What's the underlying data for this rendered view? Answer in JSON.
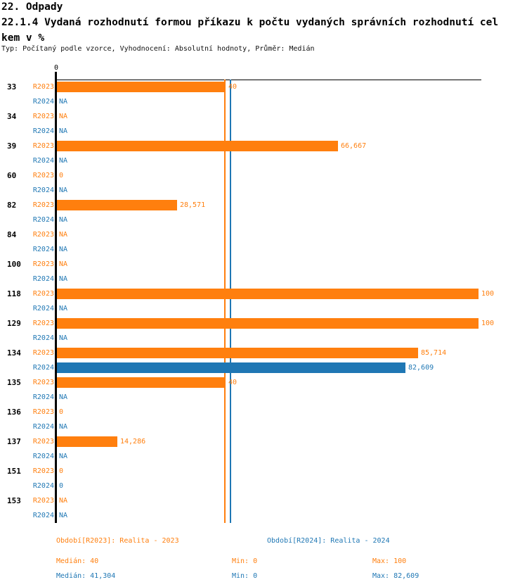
{
  "header": {
    "line1": "22. Odpady",
    "line2": "22.1.4 Vydaná rozhodnutí formou příkazu k počtu vydaných správních rozhodnutí cel",
    "line3": "kem v %",
    "subtitle": "Typ: Počítaný podle vzorce, Vyhodnocení: Absolutní hodnoty, Průměr: Medián"
  },
  "axis": {
    "tick_zero": "0"
  },
  "colors": {
    "r2023": "#ff7f0e",
    "r2024": "#1f77b4",
    "axis": "#000000"
  },
  "chart_data": {
    "type": "bar",
    "orientation": "horizontal",
    "xlim": [
      0,
      100
    ],
    "grid": false,
    "categories": [
      "33",
      "34",
      "39",
      "60",
      "82",
      "84",
      "100",
      "118",
      "129",
      "134",
      "135",
      "136",
      "137",
      "151",
      "153"
    ],
    "series": [
      {
        "name": "R2023",
        "color": "#ff7f0e",
        "values": [
          40,
          null,
          66.667,
          0,
          28.571,
          null,
          null,
          100,
          100,
          85.714,
          40,
          0,
          14.286,
          0,
          null
        ],
        "labels": [
          "40",
          "NA",
          "66,667",
          "0",
          "28,571",
          "NA",
          "NA",
          "100",
          "100",
          "85,714",
          "40",
          "0",
          "14,286",
          "0",
          "NA"
        ]
      },
      {
        "name": "R2024",
        "color": "#1f77b4",
        "values": [
          null,
          null,
          null,
          null,
          null,
          null,
          null,
          null,
          null,
          82.609,
          null,
          null,
          null,
          0,
          null
        ],
        "labels": [
          "NA",
          "NA",
          "NA",
          "NA",
          "NA",
          "NA",
          "NA",
          "NA",
          "NA",
          "82,609",
          "NA",
          "NA",
          "NA",
          "0",
          "NA"
        ]
      }
    ],
    "median_lines": [
      {
        "series": "R2023",
        "value": 40,
        "color": "#ff7f0e"
      },
      {
        "series": "R2024",
        "value": 41.304,
        "color": "#1f77b4"
      }
    ]
  },
  "legend": {
    "r2023": "Období[R2023]: Realita - 2023",
    "r2024": "Období[R2024]: Realita - 2024"
  },
  "stats": {
    "r2023": {
      "median": "Medián: 40",
      "min": "Min: 0",
      "max": "Max: 100"
    },
    "r2024": {
      "median": "Medián: 41,304",
      "min": "Min: 0",
      "max": "Max: 82,609"
    }
  }
}
